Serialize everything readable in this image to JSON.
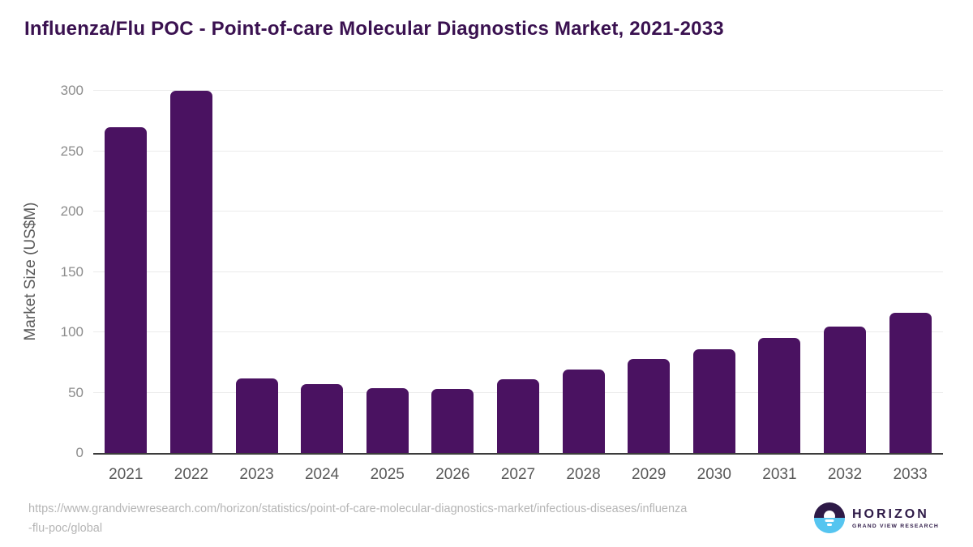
{
  "title": "Influenza/Flu POC - Point-of-care Molecular Diagnostics Market, 2021-2033",
  "chart_data": {
    "type": "bar",
    "title": "Influenza/Flu POC - Point-of-care Molecular Diagnostics Market, 2021-2033",
    "categories": [
      "2021",
      "2022",
      "2023",
      "2024",
      "2025",
      "2026",
      "2027",
      "2028",
      "2029",
      "2030",
      "2031",
      "2032",
      "2033"
    ],
    "values": [
      270,
      300,
      62,
      57,
      54,
      53,
      61,
      69,
      78,
      86,
      95,
      105,
      116
    ],
    "xlabel": "",
    "ylabel": "Market Size (US$M)",
    "ylim": [
      0,
      300
    ],
    "yticks": [
      0,
      50,
      100,
      150,
      200,
      250,
      300
    ],
    "grid": "horizontal",
    "legend": "none",
    "bar_color": "#4a1261"
  },
  "colors": {
    "title": "#3a1150",
    "bar": "#4a1261",
    "gridline": "#ebebeb",
    "axis_line": "#3c3c3c",
    "y_tick_text": "#8c8c8c",
    "x_tick_text": "#595959",
    "footer_text": "#b5b5b5",
    "logo_purple": "#2e1a47",
    "logo_blue": "#56c5f0"
  },
  "footer": {
    "url_line1": "https://www.grandviewresearch.com/horizon/statistics/point-of-care-molecular-diagnostics-market/infectious-diseases/influenza",
    "url_line2": "-flu-poc/global"
  },
  "logo": {
    "name": "HORIZON",
    "subtitle": "GRAND VIEW RESEARCH"
  }
}
